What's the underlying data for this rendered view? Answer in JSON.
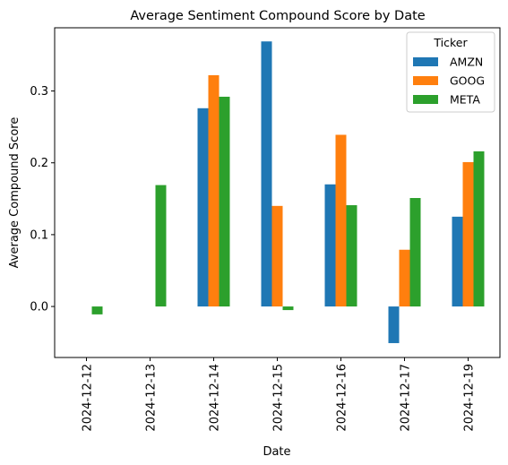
{
  "chart_data": {
    "type": "bar",
    "title": "Average Sentiment Compound Score by Date",
    "xlabel": "Date",
    "ylabel": "Average Compound Score",
    "categories": [
      "2024-12-12",
      "2024-12-13",
      "2024-12-14",
      "2024-12-15",
      "2024-12-16",
      "2024-12-17",
      "2024-12-19"
    ],
    "series": [
      {
        "name": "AMZN",
        "color": "#1f77b4",
        "values": [
          null,
          null,
          0.276,
          0.369,
          0.17,
          -0.051,
          0.125
        ]
      },
      {
        "name": "GOOG",
        "color": "#ff7f0e",
        "values": [
          null,
          null,
          0.322,
          0.14,
          0.239,
          0.079,
          0.201
        ]
      },
      {
        "name": "META",
        "color": "#2ca02c",
        "values": [
          -0.011,
          0.169,
          0.292,
          -0.005,
          0.141,
          0.151,
          0.216
        ]
      }
    ],
    "ylim": [
      -0.071,
      0.388
    ],
    "yticks": [
      0.0,
      0.1,
      0.2,
      0.3
    ],
    "ytick_labels": [
      "0.0",
      "0.1",
      "0.2",
      "0.3"
    ],
    "legend": {
      "title": "Ticker",
      "position": "top-right"
    },
    "grid": false
  }
}
